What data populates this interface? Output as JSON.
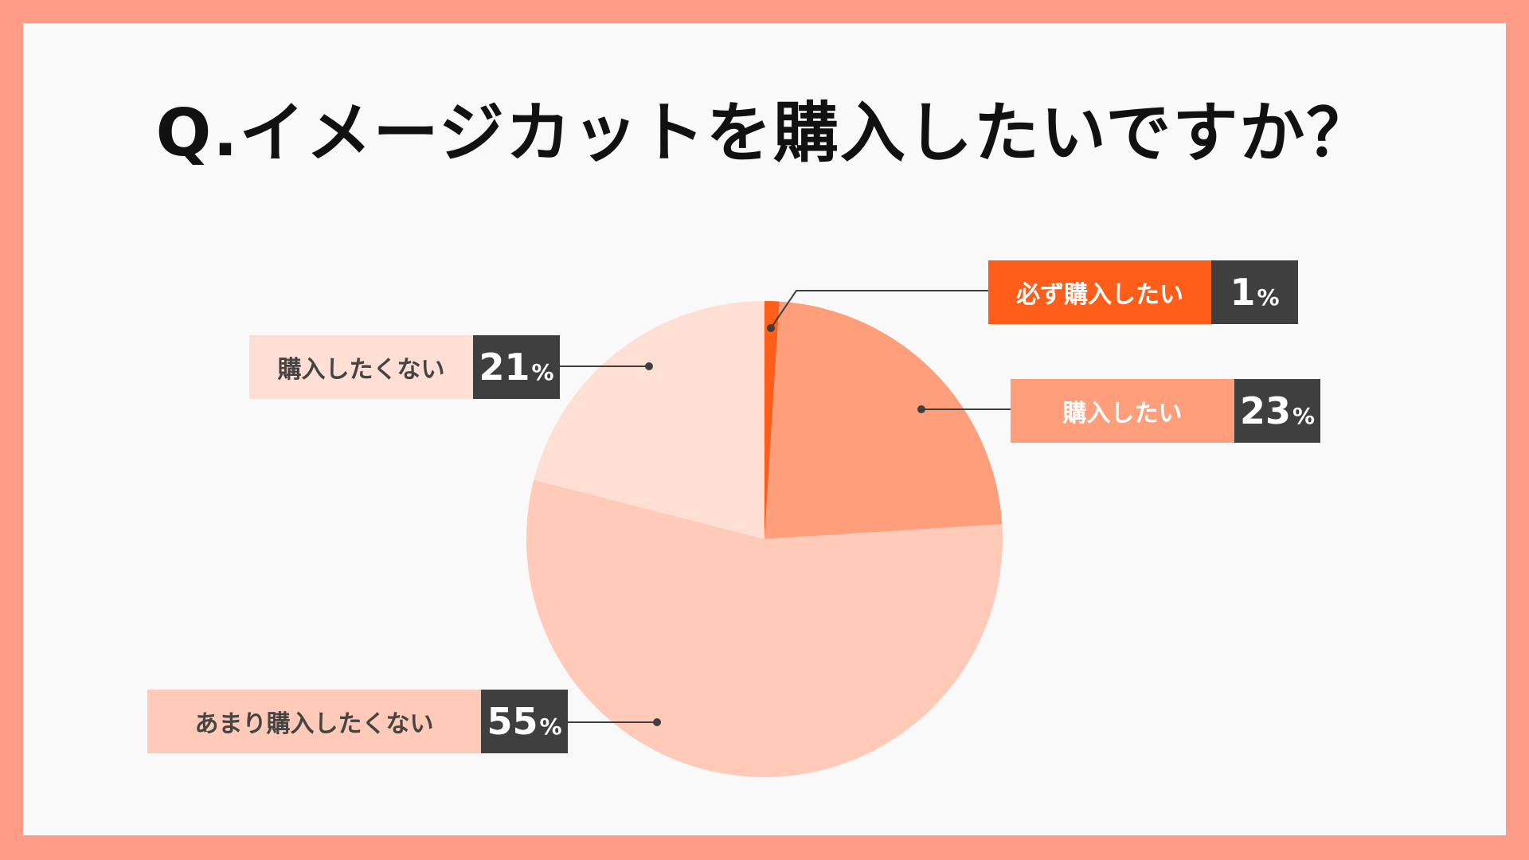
{
  "title": "Q.イメージカットを購入したいですか？",
  "colors": {
    "frame": "#FF9C87",
    "panel": "#F9F9F9",
    "value_box": "#3F3F3F"
  },
  "chart_data": {
    "type": "pie",
    "title": "Q.イメージカットを購入したいですか？",
    "start": "12 o'clock, clockwise",
    "slices": [
      {
        "label": "必ず購入したい",
        "value": 1,
        "color": "#FF5E1A"
      },
      {
        "label": "購入したい",
        "value": 23,
        "color": "#FF9E7A"
      },
      {
        "label": "あまり購入したくない",
        "value": 55,
        "color": "#FFCAB8"
      },
      {
        "label": "購入したくない",
        "value": 21,
        "color": "#FFDFD3"
      }
    ],
    "value_suffix": "%"
  }
}
